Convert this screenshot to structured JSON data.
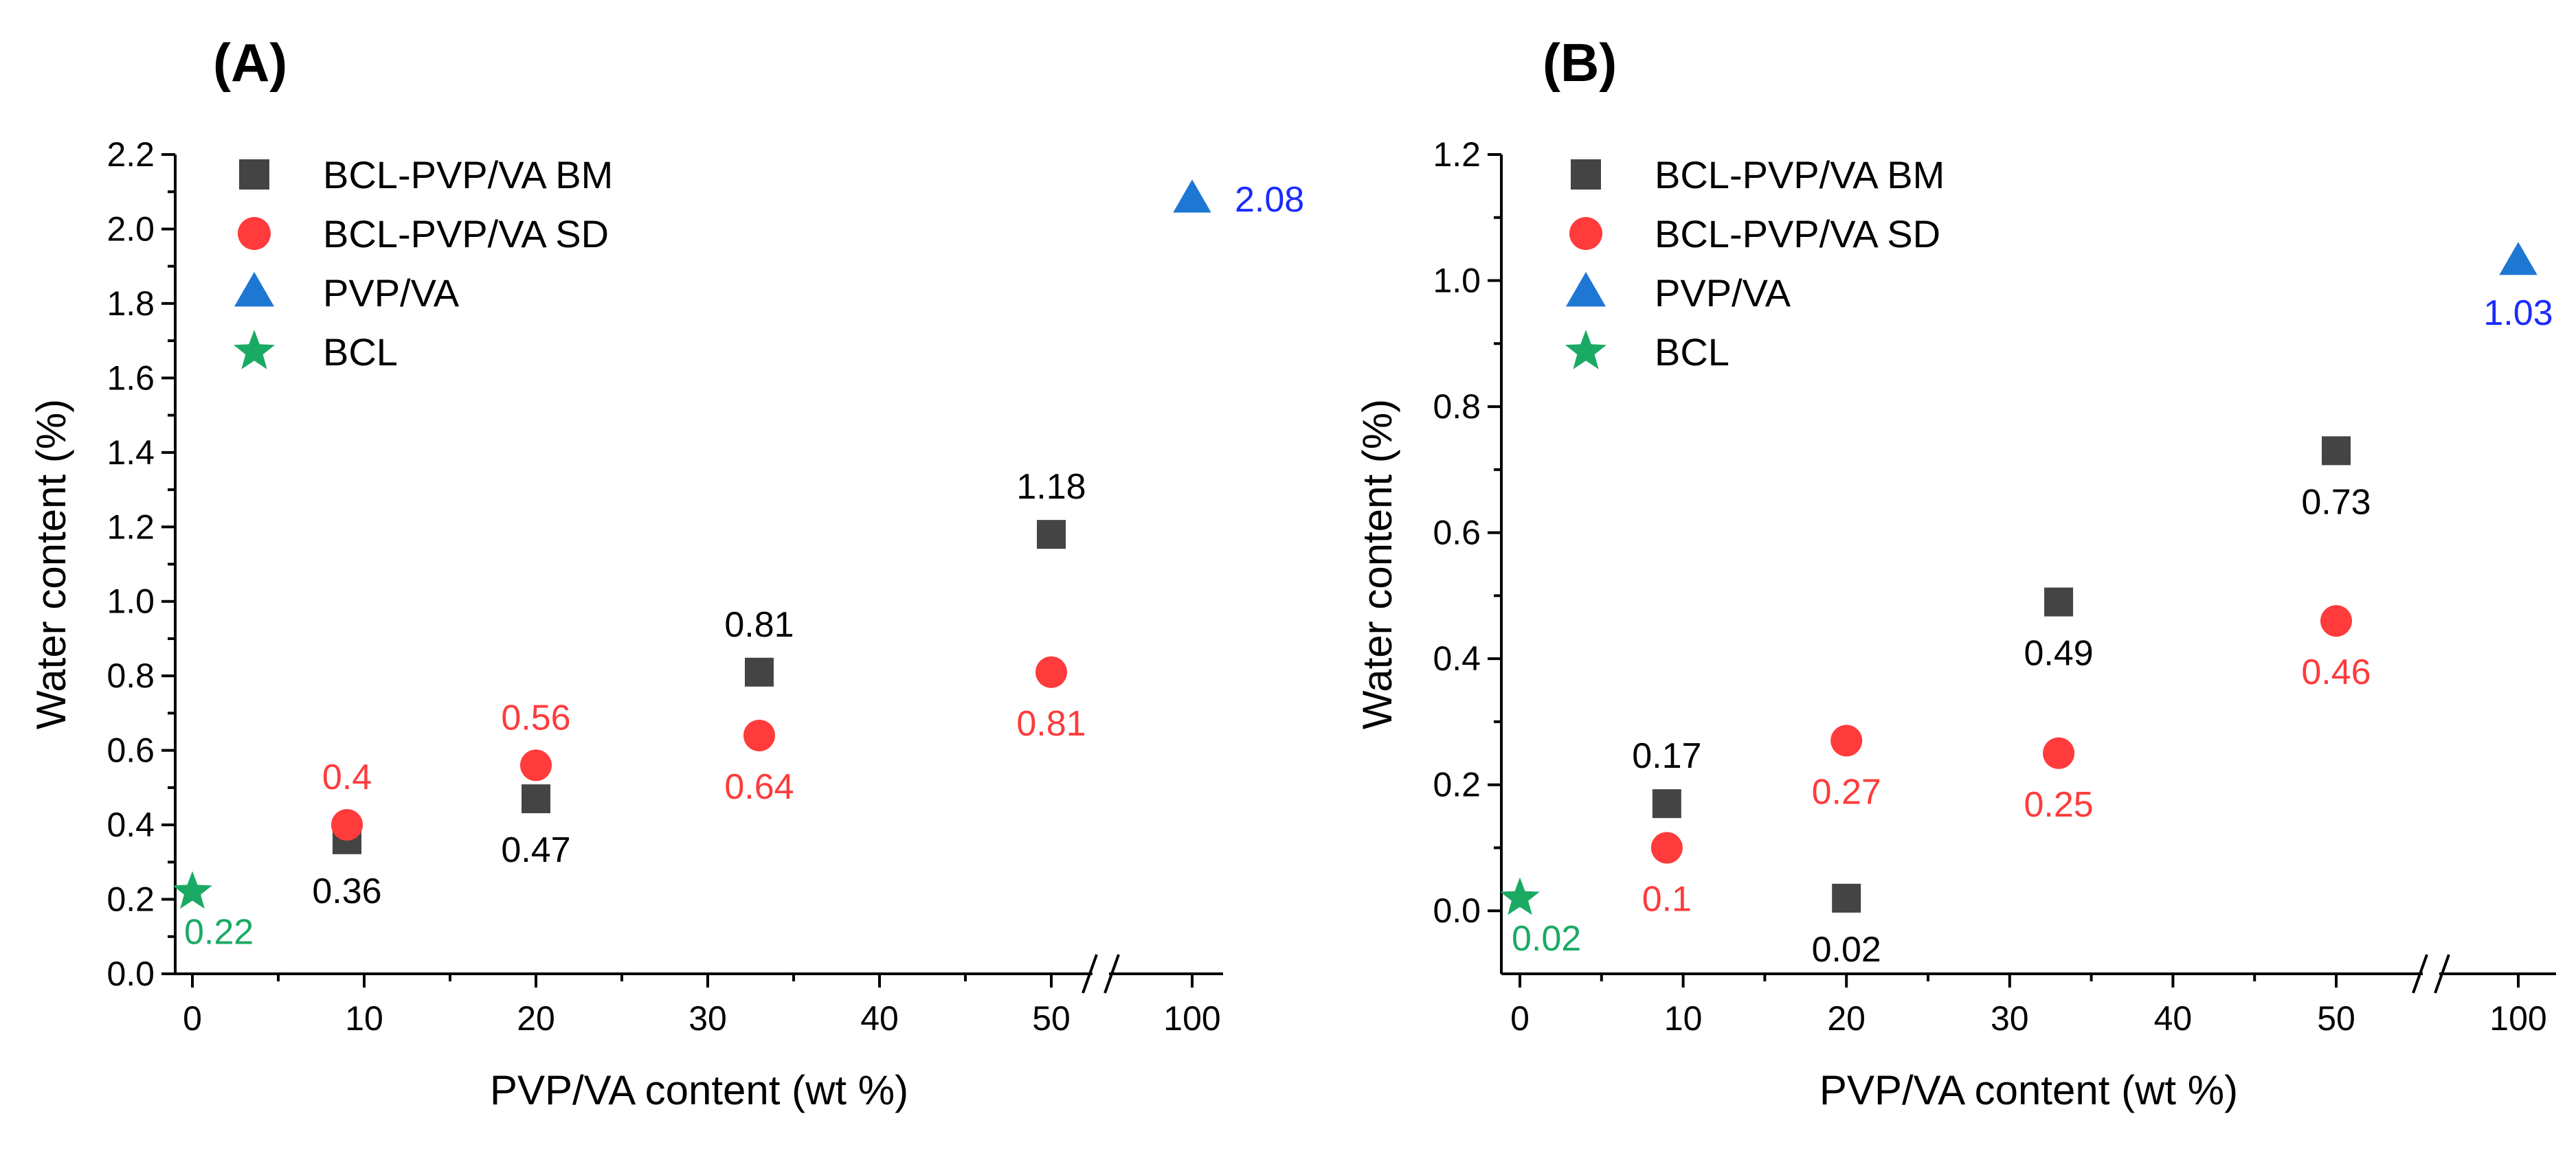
{
  "colors": {
    "bm": "#444444",
    "sd": "#ff3b3b",
    "pvpva_marker": "#1f77d4",
    "pvpva_label": "#1a2bff",
    "bcl": "#1aaa64",
    "bm_label": "#000000"
  },
  "chart_data": [
    {
      "panel": "(A)",
      "type": "scatter",
      "xlabel": "PVP/VA content (wt %)",
      "ylabel": "Water content (%)",
      "ylim": [
        0,
        2.2
      ],
      "yticks": [
        "0.0",
        "0.2",
        "0.4",
        "0.6",
        "0.8",
        "1.0",
        "1.2",
        "1.4",
        "1.6",
        "1.8",
        "2.0",
        "2.2"
      ],
      "xticks": [
        "0",
        "10",
        "20",
        "30",
        "40",
        "50",
        "100"
      ],
      "axis_break": "between 50 and 100",
      "legend": [
        {
          "key": "bm",
          "label": "BCL-PVP/VA BM",
          "marker": "square"
        },
        {
          "key": "sd",
          "label": "BCL-PVP/VA SD",
          "marker": "circle"
        },
        {
          "key": "pvpva",
          "label": "PVP/VA",
          "marker": "triangle"
        },
        {
          "key": "bcl",
          "label": "BCL",
          "marker": "star"
        }
      ],
      "series": [
        {
          "key": "bm",
          "name": "BCL-PVP/VA BM",
          "points": [
            {
              "x": 9,
              "y": 0.36,
              "label": "0.36",
              "label_pos": "below"
            },
            {
              "x": 20,
              "y": 0.47,
              "label": "0.47",
              "label_pos": "below"
            },
            {
              "x": 33,
              "y": 0.81,
              "label": "0.81",
              "label_pos": "above"
            },
            {
              "x": 50,
              "y": 1.18,
              "label": "1.18",
              "label_pos": "above"
            }
          ]
        },
        {
          "key": "sd",
          "name": "BCL-PVP/VA SD",
          "points": [
            {
              "x": 9,
              "y": 0.4,
              "label": "0.4",
              "label_pos": "above"
            },
            {
              "x": 20,
              "y": 0.56,
              "label": "0.56",
              "label_pos": "above"
            },
            {
              "x": 33,
              "y": 0.64,
              "label": "0.64",
              "label_pos": "below"
            },
            {
              "x": 50,
              "y": 0.81,
              "label": "0.81",
              "label_pos": "below"
            }
          ]
        },
        {
          "key": "pvpva",
          "name": "PVP/VA",
          "points": [
            {
              "x": 100,
              "y": 2.08,
              "label": "2.08",
              "label_pos": "right"
            }
          ]
        },
        {
          "key": "bcl",
          "name": "BCL",
          "points": [
            {
              "x": 0,
              "y": 0.22,
              "label": "0.22",
              "label_pos": "below-right"
            }
          ]
        }
      ]
    },
    {
      "panel": "(B)",
      "type": "scatter",
      "xlabel": "PVP/VA content (wt %)",
      "ylabel": "Water content (%)",
      "ylim": [
        -0.1,
        1.2
      ],
      "yticks": [
        "0.0",
        "0.2",
        "0.4",
        "0.6",
        "0.8",
        "1.0",
        "1.2"
      ],
      "xticks": [
        "0",
        "10",
        "20",
        "30",
        "40",
        "50",
        "100"
      ],
      "axis_break": "between 50 and 100",
      "legend": [
        {
          "key": "bm",
          "label": "BCL-PVP/VA BM",
          "marker": "square"
        },
        {
          "key": "sd",
          "label": "BCL-PVP/VA SD",
          "marker": "circle"
        },
        {
          "key": "pvpva",
          "label": "PVP/VA",
          "marker": "triangle"
        },
        {
          "key": "bcl",
          "label": "BCL",
          "marker": "star"
        }
      ],
      "series": [
        {
          "key": "bm",
          "name": "BCL-PVP/VA BM",
          "points": [
            {
              "x": 9,
              "y": 0.17,
              "label": "0.17",
              "label_pos": "above"
            },
            {
              "x": 20,
              "y": 0.02,
              "label": "0.02",
              "label_pos": "below"
            },
            {
              "x": 33,
              "y": 0.49,
              "label": "0.49",
              "label_pos": "below"
            },
            {
              "x": 50,
              "y": 0.73,
              "label": "0.73",
              "label_pos": "below"
            }
          ]
        },
        {
          "key": "sd",
          "name": "BCL-PVP/VA SD",
          "points": [
            {
              "x": 9,
              "y": 0.1,
              "label": "0.1",
              "label_pos": "below"
            },
            {
              "x": 20,
              "y": 0.27,
              "label": "0.27",
              "label_pos": "below"
            },
            {
              "x": 33,
              "y": 0.25,
              "label": "0.25",
              "label_pos": "below"
            },
            {
              "x": 50,
              "y": 0.46,
              "label": "0.46",
              "label_pos": "below"
            }
          ]
        },
        {
          "key": "pvpva",
          "name": "PVP/VA",
          "points": [
            {
              "x": 100,
              "y": 1.03,
              "label": "1.03",
              "label_pos": "below"
            }
          ]
        },
        {
          "key": "bcl",
          "name": "BCL",
          "points": [
            {
              "x": 0,
              "y": 0.02,
              "label": "0.02",
              "label_pos": "below-right"
            }
          ]
        }
      ]
    }
  ]
}
